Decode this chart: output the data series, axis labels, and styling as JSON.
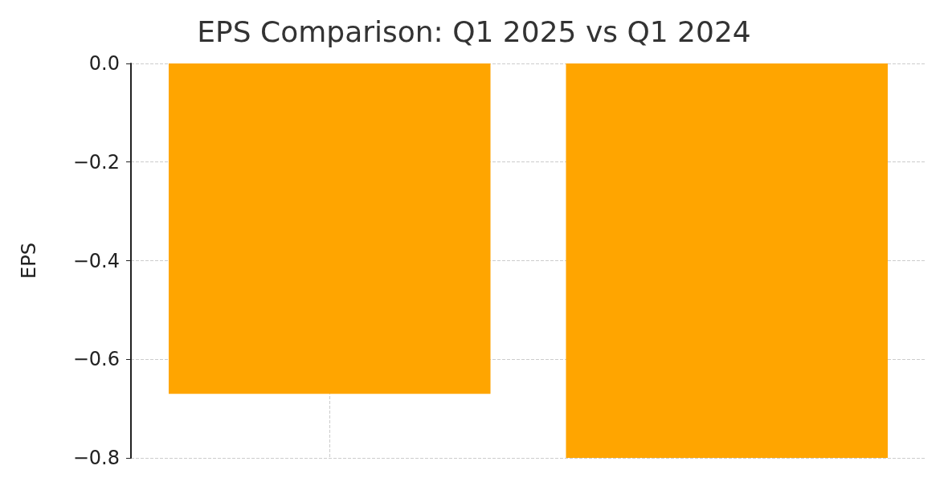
{
  "chart_data": {
    "type": "bar",
    "title": "EPS Comparison: Q1 2025 vs Q1 2024",
    "ylabel": "EPS",
    "categories": [
      null,
      null
    ],
    "values": [
      -0.67,
      -0.8
    ],
    "color": "#ffa500",
    "ylim": [
      -0.8,
      0
    ],
    "yticks": [
      {
        "value": -0.8,
        "label": "−0.8"
      },
      {
        "value": -0.6,
        "label": "−0.6"
      },
      {
        "value": -0.4,
        "label": "−0.4"
      },
      {
        "value": -0.2,
        "label": "−0.2"
      },
      {
        "value": 0,
        "label": "0.0"
      }
    ],
    "grid": true,
    "tick_labels": "y"
  }
}
